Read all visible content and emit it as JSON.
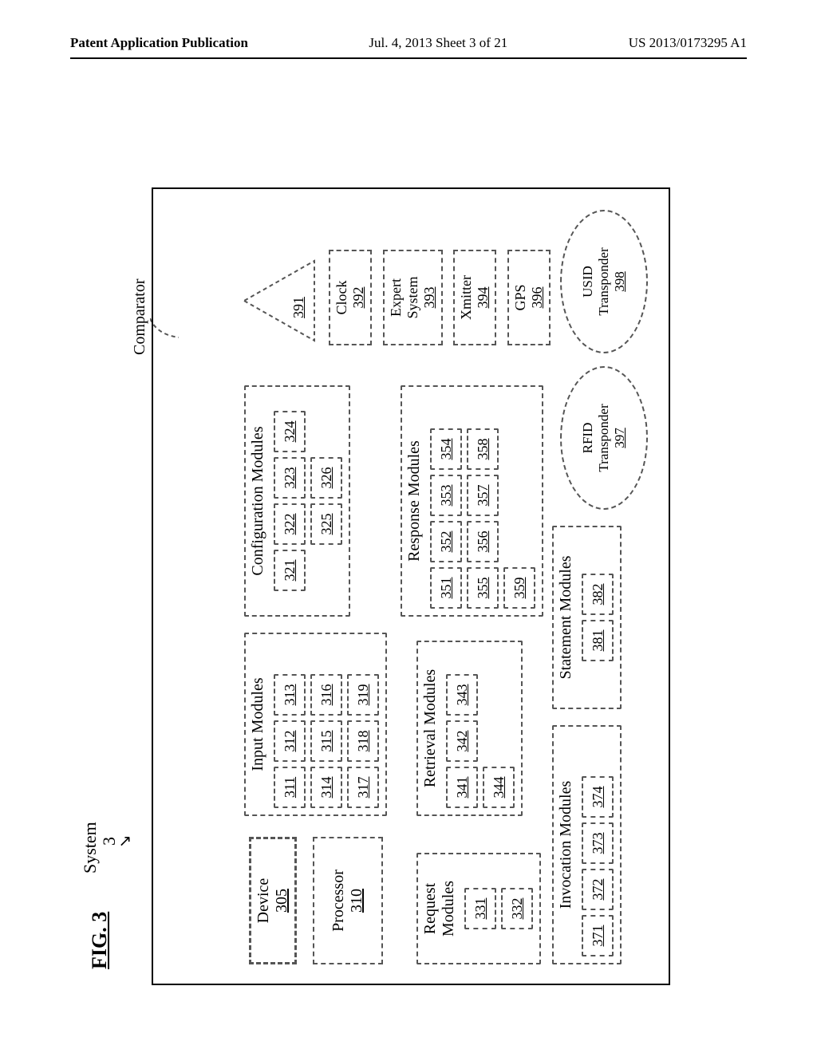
{
  "header": {
    "left": "Patent Application Publication",
    "center": "Jul. 4, 2013   Sheet 3 of 21",
    "right": "US 2013/0173295 A1"
  },
  "figure": {
    "title": "FIG. 3",
    "system_label": "System",
    "system_num": "3",
    "comparator_label": "Comparator"
  },
  "device": {
    "label": "Device",
    "num": "305"
  },
  "processor": {
    "label": "Processor",
    "num": "310"
  },
  "input_modules": {
    "title": "Input Modules",
    "cells": [
      "311",
      "312",
      "313",
      "314",
      "315",
      "316",
      "317",
      "318",
      "319"
    ]
  },
  "config_modules": {
    "title": "Configuration Modules",
    "cells": [
      "321",
      "322",
      "323",
      "324",
      "325",
      "326"
    ]
  },
  "request_modules": {
    "title": "Request\nModules",
    "cells": [
      "331",
      "332"
    ]
  },
  "retrieval_modules": {
    "title": "Retrieval Modules",
    "cells": [
      "341",
      "342",
      "343",
      "344"
    ]
  },
  "response_modules": {
    "title": "Response Modules",
    "cells": [
      "351",
      "352",
      "353",
      "354",
      "355",
      "356",
      "357",
      "358",
      "359"
    ]
  },
  "invocation_modules": {
    "title": "Invocation Modules",
    "cells": [
      "371",
      "372",
      "373",
      "374"
    ]
  },
  "statement_modules": {
    "title": "Statement Modules",
    "cells": [
      "381",
      "382"
    ]
  },
  "triangle_391": "391",
  "side": {
    "clock": {
      "label": "Clock",
      "num": "392"
    },
    "expert": {
      "label": "Expert\nSystem",
      "num": "393"
    },
    "xmitter": {
      "label": "Xmitter",
      "num": "394"
    },
    "gps": {
      "label": "GPS",
      "num": "396"
    }
  },
  "ellipses": {
    "rfid": {
      "label": "RFID\nTransponder",
      "num": "397"
    },
    "usid": {
      "label": "USID\nTransponder",
      "num": "398"
    }
  },
  "style": {
    "page_bg": "#ffffff",
    "line_color": "#000000",
    "dash_color": "#555555",
    "font_family": "Times New Roman, serif",
    "header_fontsize_pt": 13,
    "title_fontsize_pt": 20,
    "body_fontsize_pt": 15,
    "cell_fontsize_pt": 14,
    "rotation_deg": -90,
    "page_dims": [
      1024,
      1320
    ],
    "cell_dims": [
      52,
      40
    ]
  }
}
